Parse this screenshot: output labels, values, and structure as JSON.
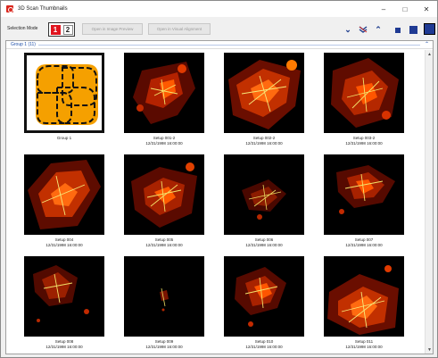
{
  "window": {
    "title": "3D Scan Thumbnails",
    "minimize_icon": "minimize-icon",
    "maximize_icon": "maximize-icon",
    "close_icon": "close-icon"
  },
  "toolbar": {
    "selection_mode_label": "Selection Mode",
    "mode_1": "1",
    "mode_2": "2",
    "open_image_preview": "Open in Image Preview",
    "open_visual_alignment": "Open in Visual Alignment",
    "expand_icon": "chevron-down-icon",
    "toggle_icon": "collapse-expand-icon",
    "collapse_icon": "chevron-up-icon"
  },
  "colors": {
    "accent": "#1f3a93",
    "selected_mode": "#e0141e",
    "group_fill": "#f5a000",
    "group_label": "#1f4fa8"
  },
  "group": {
    "label": "Group 1 (11)"
  },
  "tiles": [
    {
      "name": "Group 1",
      "date": ""
    },
    {
      "name": "Setup 001-2",
      "date": "12/31/1998 16:00:00"
    },
    {
      "name": "Setup 002-2",
      "date": "12/31/1998 16:00:00"
    },
    {
      "name": "Setup 003-2",
      "date": "12/31/1998 16:00:00"
    },
    {
      "name": "Setup 004",
      "date": "12/31/1998 16:00:00"
    },
    {
      "name": "Setup 005",
      "date": "12/31/1998 16:00:00"
    },
    {
      "name": "Setup 006",
      "date": "12/31/1998 16:00:00"
    },
    {
      "name": "Setup 007",
      "date": "12/31/1998 16:00:00"
    },
    {
      "name": "Setup 008",
      "date": "12/31/1998 16:00:00"
    },
    {
      "name": "Setup 009",
      "date": "12/31/1998 16:00:00"
    },
    {
      "name": "Setup 010",
      "date": "12/31/1998 16:00:00"
    },
    {
      "name": "Setup 011",
      "date": "12/31/1998 16:00:00"
    }
  ]
}
